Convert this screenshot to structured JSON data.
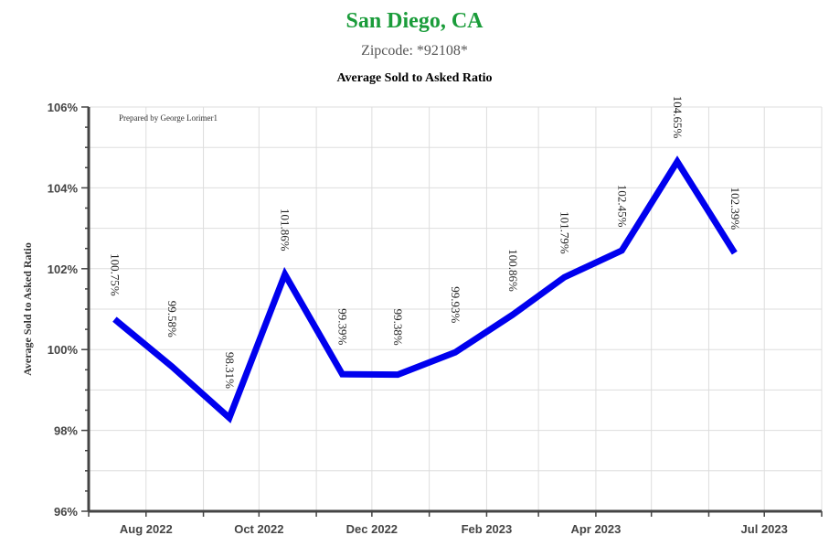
{
  "chart_data": {
    "type": "line",
    "title": "San Diego, CA",
    "subtitle": "Zipcode: *92108*",
    "chart_title": "Average Sold to Asked Ratio",
    "ylabel": "Average Sold to Asked Ratio",
    "watermark": "Prepared by George Lorimer1",
    "ylim": [
      96,
      106
    ],
    "yticks": [
      {
        "v": 96,
        "label": "96%"
      },
      {
        "v": 98,
        "label": "98%"
      },
      {
        "v": 100,
        "label": "100%"
      },
      {
        "v": 102,
        "label": "102%"
      },
      {
        "v": 104,
        "label": "104%"
      },
      {
        "v": 106,
        "label": "106%"
      }
    ],
    "xlim": [
      "2022-07-01",
      "2023-08-01"
    ],
    "xticks": [
      {
        "date": "2022-08-01",
        "label": "Aug 2022"
      },
      {
        "date": "2022-10-01",
        "label": "Oct 2022"
      },
      {
        "date": "2022-12-01",
        "label": "Dec 2022"
      },
      {
        "date": "2023-02-01",
        "label": "Feb 2023"
      },
      {
        "date": "2023-04-01",
        "label": "Apr 2023"
      },
      {
        "date": "2023-07-01",
        "label": "Jul 2023"
      }
    ],
    "points": [
      {
        "x": "2022-07-15",
        "y": 100.75,
        "label": "100.75%"
      },
      {
        "x": "2022-08-15",
        "y": 99.58,
        "label": "99.58%"
      },
      {
        "x": "2022-09-15",
        "y": 98.31,
        "label": "98.31%"
      },
      {
        "x": "2022-10-15",
        "y": 101.86,
        "label": "101.86%"
      },
      {
        "x": "2022-11-15",
        "y": 99.39,
        "label": "99.39%"
      },
      {
        "x": "2022-12-15",
        "y": 99.38,
        "label": "99.38%"
      },
      {
        "x": "2023-01-15",
        "y": 99.93,
        "label": "99.93%"
      },
      {
        "x": "2023-02-15",
        "y": 100.86,
        "label": "100.86%"
      },
      {
        "x": "2023-03-15",
        "y": 101.79,
        "label": "101.79%"
      },
      {
        "x": "2023-04-15",
        "y": 102.45,
        "label": "102.45%"
      },
      {
        "x": "2023-05-15",
        "y": 104.65,
        "label": "104.65%"
      },
      {
        "x": "2023-06-15",
        "y": 102.39,
        "label": "102.39%"
      }
    ],
    "line_color": "#0000ee",
    "grid": true
  }
}
